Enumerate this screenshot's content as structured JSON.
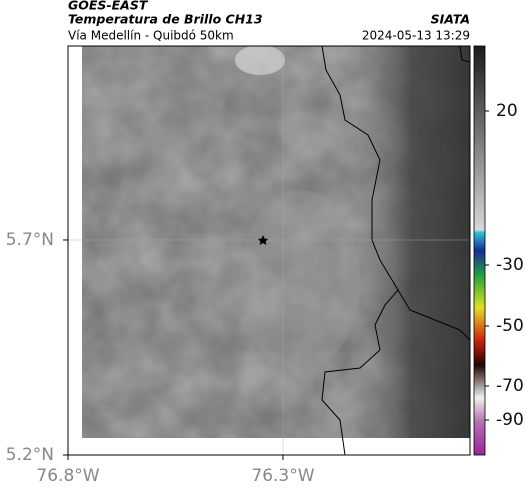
{
  "header": {
    "source": "GOES-EAST",
    "product": "Temperatura de Brillo CH13",
    "agency": "SIATA",
    "route": "Vía Medellín - Quibdó 50km",
    "timestamp": "2024-05-13 13:29"
  },
  "map": {
    "xlim": [
      -76.8,
      -75.865
    ],
    "ylim": [
      5.2,
      6.151
    ],
    "xticks": [
      {
        "value": -76.8,
        "label": "76.8°W"
      },
      {
        "value": -76.3,
        "label": "76.3°W"
      }
    ],
    "yticks": [
      {
        "value": 5.2,
        "label": "5.2°N"
      },
      {
        "value": 5.7,
        "label": "5.7°N"
      }
    ],
    "grid": true
  },
  "colorbar": {
    "ticks": [
      20,
      -30,
      -50,
      -70,
      -90
    ]
  }
}
